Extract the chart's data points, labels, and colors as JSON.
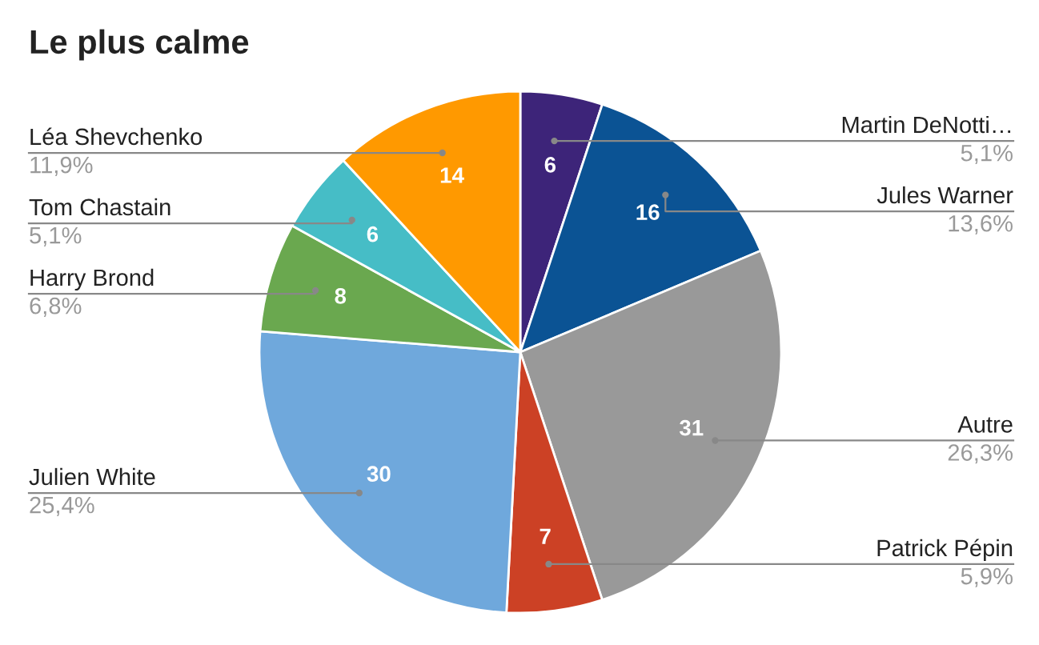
{
  "chart_data": {
    "type": "pie",
    "title": "Le plus calme",
    "categories": [
      "Martin DeNotti…",
      "Jules Warner",
      "Autre",
      "Patrick Pépin",
      "Julien White",
      "Harry Brond",
      "Tom Chastain",
      "Léa Shevchenko"
    ],
    "values": [
      6,
      16,
      31,
      7,
      30,
      8,
      6,
      14
    ],
    "colors": [
      "#3d2479",
      "#0b5394",
      "#999999",
      "#cc4125",
      "#6fa8dc",
      "#6aa84f",
      "#46bdc6",
      "#ff9900"
    ],
    "data_labels": true,
    "annotations": [
      {
        "text": "5,1%",
        "x": "Martin DeNotti…"
      },
      {
        "text": "13,6%",
        "x": "Jules Warner"
      },
      {
        "text": "26,3%",
        "x": "Autre"
      },
      {
        "text": "5,9%",
        "x": "Patrick Pépin"
      },
      {
        "text": "25,4%",
        "x": "Julien White"
      },
      {
        "text": "6,8%",
        "x": "Harry Brond"
      },
      {
        "text": "5,1%",
        "x": "Tom Chastain"
      },
      {
        "text": "11,9%",
        "x": "Léa Shevchenko"
      }
    ]
  }
}
